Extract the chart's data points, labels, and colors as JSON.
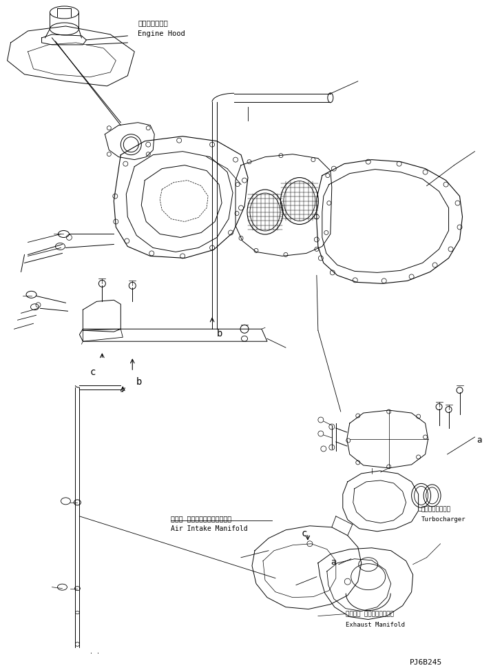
{
  "background_color": "#ffffff",
  "line_color": "#000000",
  "figsize": [
    7.29,
    9.69
  ],
  "dpi": 100,
  "labels": {
    "engine_hood_jp": "エンジンフード",
    "engine_hood_en": "Engine Hood",
    "air_intake_jp": "エアー インテークマニホールド",
    "air_intake_en": "Air Intake Manifold",
    "turbocharger_jp": "ターボチャージャ",
    "turbocharger_en": "Turbocharger",
    "exhaust_jp": "エキゾー ストマニホールド",
    "exhaust_en": "Exhaust Manifold",
    "part_id": "PJ6B245"
  }
}
